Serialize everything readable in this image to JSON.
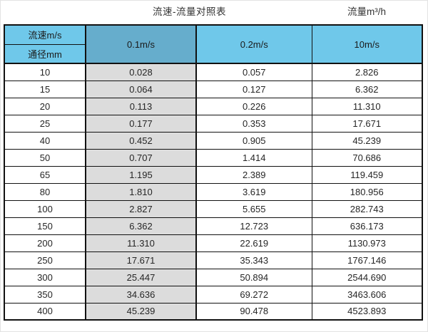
{
  "page": {
    "title": "流速-流量对照表",
    "flow_unit_label": "流量m³/h"
  },
  "chart_data": {
    "type": "table",
    "title": "流速-流量对照表",
    "unit_note": "流量m³/h",
    "corner_header": {
      "top": "流速m/s",
      "bottom": "通径mm"
    },
    "velocity_columns": [
      "0.1m/s",
      "0.2m/s",
      "10m/s"
    ],
    "rows": [
      {
        "dn": "10",
        "values": [
          "0.028",
          "0.057",
          "2.826"
        ]
      },
      {
        "dn": "15",
        "values": [
          "0.064",
          "0.127",
          "6.362"
        ]
      },
      {
        "dn": "20",
        "values": [
          "0.113",
          "0.226",
          "11.310"
        ]
      },
      {
        "dn": "25",
        "values": [
          "0.177",
          "0.353",
          "17.671"
        ]
      },
      {
        "dn": "40",
        "values": [
          "0.452",
          "0.905",
          "45.239"
        ]
      },
      {
        "dn": "50",
        "values": [
          "0.707",
          "1.414",
          "70.686"
        ]
      },
      {
        "dn": "65",
        "values": [
          "1.195",
          "2.389",
          "119.459"
        ]
      },
      {
        "dn": "80",
        "values": [
          "1.810",
          "3.619",
          "180.956"
        ]
      },
      {
        "dn": "100",
        "values": [
          "2.827",
          "5.655",
          "282.743"
        ]
      },
      {
        "dn": "150",
        "values": [
          "6.362",
          "12.723",
          "636.173"
        ]
      },
      {
        "dn": "200",
        "values": [
          "11.310",
          "22.619",
          "1130.973"
        ]
      },
      {
        "dn": "250",
        "values": [
          "17.671",
          "35.343",
          "1767.146"
        ]
      },
      {
        "dn": "300",
        "values": [
          "25.447",
          "50.894",
          "2544.690"
        ]
      },
      {
        "dn": "350",
        "values": [
          "34.636",
          "69.272",
          "3463.606"
        ]
      },
      {
        "dn": "400",
        "values": [
          "45.239",
          "90.478",
          "4523.893"
        ]
      }
    ]
  },
  "colors": {
    "header_blue": "#6FC8EA",
    "header_blue_dark": "#66ADCC",
    "col_gray": "#DCDCDC",
    "border": "#111111"
  }
}
